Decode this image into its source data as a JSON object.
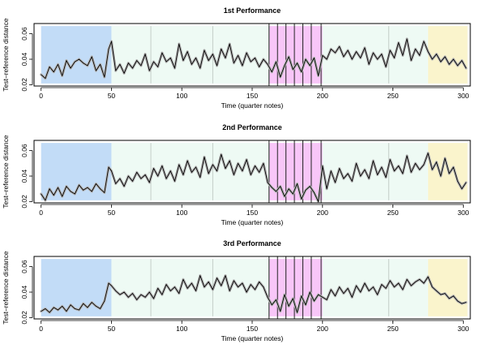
{
  "chart_data": [
    {
      "type": "line",
      "title": "1st Performance",
      "xlabel": "Time (quarter notes)",
      "ylabel": "Test–reference distance",
      "xlim": [
        -5,
        305
      ],
      "ylim": [
        0.019,
        0.068
      ],
      "xticks": [
        0,
        50,
        100,
        150,
        200,
        250,
        300
      ],
      "yticks": [
        0.02,
        0.04,
        0.06
      ],
      "ytick_labels": [
        "0.02",
        "0.04",
        "0.06"
      ],
      "regions": [
        {
          "start": 0,
          "end": 50,
          "color": "#c2dcf7"
        },
        {
          "start": 50,
          "end": 162,
          "color": "#eefaf4"
        },
        {
          "start": 162,
          "end": 200,
          "color": "#f8c6f8"
        },
        {
          "start": 200,
          "end": 275,
          "color": "#eefaf4"
        },
        {
          "start": 275,
          "end": 303,
          "color": "#faf4cc"
        }
      ],
      "section_lines": [
        78,
        122,
        162,
        247
      ],
      "boundary_lines": [
        162,
        168,
        174,
        180,
        186,
        192,
        199
      ],
      "band_color": "#b5b5b5",
      "line_color": "#000000",
      "series": [
        {
          "x": [
            0,
            3,
            6,
            9,
            12,
            15,
            18,
            21,
            24,
            27,
            30,
            33,
            36,
            39,
            42,
            45,
            48,
            50,
            53,
            56,
            59,
            62,
            65,
            68,
            71,
            74,
            77,
            80,
            83,
            86,
            89,
            92,
            95,
            98,
            101,
            104,
            107,
            110,
            113,
            116,
            119,
            122,
            125,
            128,
            131,
            134,
            137,
            140,
            143,
            146,
            149,
            152,
            155,
            158,
            161,
            164,
            167,
            170,
            173,
            176,
            179,
            182,
            185,
            188,
            191,
            194,
            197,
            200,
            203,
            206,
            209,
            212,
            215,
            218,
            221,
            224,
            227,
            230,
            233,
            236,
            239,
            242,
            245,
            248,
            251,
            254,
            257,
            260,
            263,
            266,
            269,
            272,
            275,
            278,
            281,
            284,
            287,
            290,
            293,
            296,
            299,
            302
          ],
          "values": [
            0.028,
            0.025,
            0.034,
            0.03,
            0.036,
            0.027,
            0.039,
            0.033,
            0.038,
            0.04,
            0.037,
            0.035,
            0.042,
            0.031,
            0.036,
            0.026,
            0.048,
            0.054,
            0.031,
            0.036,
            0.029,
            0.037,
            0.033,
            0.039,
            0.035,
            0.044,
            0.031,
            0.038,
            0.034,
            0.045,
            0.038,
            0.041,
            0.033,
            0.052,
            0.039,
            0.046,
            0.036,
            0.041,
            0.033,
            0.047,
            0.039,
            0.044,
            0.035,
            0.048,
            0.041,
            0.052,
            0.037,
            0.043,
            0.035,
            0.045,
            0.038,
            0.041,
            0.034,
            0.04,
            0.036,
            0.03,
            0.038,
            0.026,
            0.035,
            0.042,
            0.032,
            0.037,
            0.03,
            0.04,
            0.035,
            0.041,
            0.027,
            0.043,
            0.04,
            0.048,
            0.045,
            0.05,
            0.042,
            0.047,
            0.04,
            0.046,
            0.041,
            0.049,
            0.036,
            0.045,
            0.04,
            0.044,
            0.034,
            0.047,
            0.041,
            0.053,
            0.043,
            0.056,
            0.039,
            0.048,
            0.043,
            0.054,
            0.046,
            0.04,
            0.044,
            0.038,
            0.042,
            0.036,
            0.04,
            0.035,
            0.039,
            0.033
          ]
        }
      ]
    },
    {
      "type": "line",
      "title": "2nd Performance",
      "xlabel": "Time (quarter notes)",
      "ylabel": "Test–reference distance",
      "xlim": [
        -5,
        305
      ],
      "ylim": [
        0.019,
        0.068
      ],
      "xticks": [
        0,
        50,
        100,
        150,
        200,
        250,
        300
      ],
      "yticks": [
        0.02,
        0.04,
        0.06
      ],
      "ytick_labels": [
        "0.02",
        "0.04",
        "0.06"
      ],
      "regions": [
        {
          "start": 0,
          "end": 50,
          "color": "#c2dcf7"
        },
        {
          "start": 50,
          "end": 162,
          "color": "#eefaf4"
        },
        {
          "start": 162,
          "end": 200,
          "color": "#f8c6f8"
        },
        {
          "start": 200,
          "end": 275,
          "color": "#eefaf4"
        },
        {
          "start": 275,
          "end": 303,
          "color": "#faf4cc"
        }
      ],
      "section_lines": [
        78,
        122,
        162,
        247
      ],
      "boundary_lines": [
        162,
        168,
        174,
        180,
        186,
        192,
        199
      ],
      "band_color": "#b5b5b5",
      "line_color": "#000000",
      "series": [
        {
          "x": [
            0,
            3,
            6,
            9,
            12,
            15,
            18,
            21,
            24,
            27,
            30,
            33,
            36,
            39,
            42,
            45,
            48,
            50,
            53,
            56,
            59,
            62,
            65,
            68,
            71,
            74,
            77,
            80,
            83,
            86,
            89,
            92,
            95,
            98,
            101,
            104,
            107,
            110,
            113,
            116,
            119,
            122,
            125,
            128,
            131,
            134,
            137,
            140,
            143,
            146,
            149,
            152,
            155,
            158,
            161,
            164,
            167,
            170,
            173,
            176,
            179,
            182,
            185,
            188,
            191,
            194,
            197,
            200,
            203,
            206,
            209,
            212,
            215,
            218,
            221,
            224,
            227,
            230,
            233,
            236,
            239,
            242,
            245,
            248,
            251,
            254,
            257,
            260,
            263,
            266,
            269,
            272,
            275,
            278,
            281,
            284,
            287,
            290,
            293,
            296,
            299,
            302
          ],
          "values": [
            0.026,
            0.021,
            0.03,
            0.025,
            0.031,
            0.024,
            0.032,
            0.028,
            0.026,
            0.033,
            0.029,
            0.031,
            0.028,
            0.034,
            0.03,
            0.027,
            0.047,
            0.044,
            0.034,
            0.038,
            0.032,
            0.04,
            0.036,
            0.043,
            0.038,
            0.041,
            0.035,
            0.046,
            0.04,
            0.048,
            0.038,
            0.044,
            0.036,
            0.049,
            0.041,
            0.052,
            0.043,
            0.047,
            0.039,
            0.055,
            0.042,
            0.049,
            0.044,
            0.057,
            0.046,
            0.052,
            0.041,
            0.05,
            0.044,
            0.053,
            0.041,
            0.048,
            0.043,
            0.05,
            0.035,
            0.031,
            0.028,
            0.032,
            0.024,
            0.03,
            0.026,
            0.034,
            0.022,
            0.029,
            0.032,
            0.027,
            0.02,
            0.048,
            0.03,
            0.044,
            0.035,
            0.046,
            0.038,
            0.042,
            0.036,
            0.05,
            0.04,
            0.045,
            0.038,
            0.052,
            0.041,
            0.047,
            0.039,
            0.053,
            0.044,
            0.048,
            0.042,
            0.056,
            0.043,
            0.05,
            0.045,
            0.049,
            0.058,
            0.045,
            0.051,
            0.04,
            0.054,
            0.042,
            0.047,
            0.036,
            0.03,
            0.035
          ]
        }
      ]
    },
    {
      "type": "line",
      "title": "3rd Performance",
      "xlabel": "Time (quarter notes)",
      "ylabel": "Test–reference distance",
      "xlim": [
        -5,
        305
      ],
      "ylim": [
        0.019,
        0.068
      ],
      "xticks": [
        0,
        50,
        100,
        150,
        200,
        250,
        300
      ],
      "yticks": [
        0.02,
        0.04,
        0.06
      ],
      "ytick_labels": [
        "0.02",
        "0.04",
        "0.06"
      ],
      "regions": [
        {
          "start": 0,
          "end": 50,
          "color": "#c2dcf7"
        },
        {
          "start": 50,
          "end": 162,
          "color": "#eefaf4"
        },
        {
          "start": 162,
          "end": 200,
          "color": "#f8c6f8"
        },
        {
          "start": 200,
          "end": 275,
          "color": "#eefaf4"
        },
        {
          "start": 275,
          "end": 303,
          "color": "#faf4cc"
        }
      ],
      "section_lines": [
        78,
        122,
        162,
        247
      ],
      "boundary_lines": [
        162,
        168,
        174,
        180,
        186,
        192,
        199
      ],
      "band_color": "#b5b5b5",
      "line_color": "#000000",
      "series": [
        {
          "x": [
            0,
            3,
            6,
            9,
            12,
            15,
            18,
            21,
            24,
            27,
            30,
            33,
            36,
            39,
            42,
            45,
            48,
            50,
            53,
            56,
            59,
            62,
            65,
            68,
            71,
            74,
            77,
            80,
            83,
            86,
            89,
            92,
            95,
            98,
            101,
            104,
            107,
            110,
            113,
            116,
            119,
            122,
            125,
            128,
            131,
            134,
            137,
            140,
            143,
            146,
            149,
            152,
            155,
            158,
            161,
            164,
            167,
            170,
            173,
            176,
            179,
            182,
            185,
            188,
            191,
            194,
            197,
            200,
            203,
            206,
            209,
            212,
            215,
            218,
            221,
            224,
            227,
            230,
            233,
            236,
            239,
            242,
            245,
            248,
            251,
            254,
            257,
            260,
            263,
            266,
            269,
            272,
            275,
            278,
            281,
            284,
            287,
            290,
            293,
            296,
            299,
            302
          ],
          "values": [
            0.025,
            0.027,
            0.024,
            0.028,
            0.026,
            0.029,
            0.025,
            0.03,
            0.027,
            0.026,
            0.031,
            0.028,
            0.032,
            0.029,
            0.027,
            0.033,
            0.047,
            0.045,
            0.041,
            0.038,
            0.04,
            0.036,
            0.039,
            0.034,
            0.038,
            0.036,
            0.04,
            0.035,
            0.043,
            0.038,
            0.046,
            0.041,
            0.044,
            0.039,
            0.05,
            0.043,
            0.047,
            0.041,
            0.053,
            0.044,
            0.048,
            0.042,
            0.051,
            0.045,
            0.053,
            0.041,
            0.049,
            0.044,
            0.047,
            0.04,
            0.046,
            0.042,
            0.048,
            0.044,
            0.036,
            0.03,
            0.034,
            0.025,
            0.038,
            0.029,
            0.035,
            0.024,
            0.037,
            0.03,
            0.04,
            0.033,
            0.038,
            0.036,
            0.034,
            0.042,
            0.037,
            0.044,
            0.039,
            0.043,
            0.036,
            0.045,
            0.04,
            0.047,
            0.041,
            0.044,
            0.038,
            0.046,
            0.043,
            0.049,
            0.044,
            0.047,
            0.042,
            0.05,
            0.045,
            0.048,
            0.05,
            0.047,
            0.052,
            0.044,
            0.041,
            0.038,
            0.039,
            0.035,
            0.037,
            0.033,
            0.031,
            0.032
          ]
        }
      ]
    }
  ]
}
